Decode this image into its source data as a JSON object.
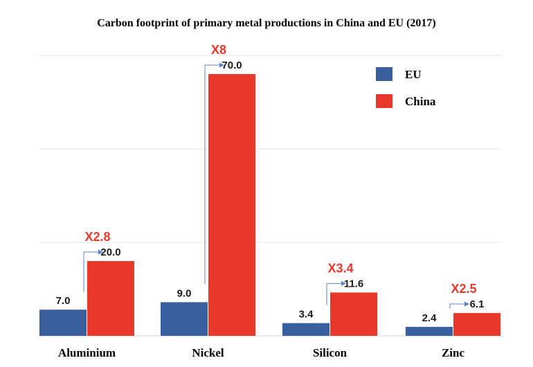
{
  "chart_data": {
    "type": "bar",
    "title": "Carbon footprint of primary metal productions in China and EU (2017)",
    "xlabel": "",
    "ylabel": "",
    "ylim": [
      0,
      80
    ],
    "grid": true,
    "legend_position": "top-right",
    "categories": [
      "Aluminium",
      "Nickel",
      "Silicon",
      "Zinc"
    ],
    "series": [
      {
        "name": "EU",
        "color": "#3a5f9e",
        "values": [
          7.0,
          9.0,
          3.4,
          2.4
        ],
        "labels": [
          "7.0",
          "9.0",
          "3.4",
          "2.4"
        ]
      },
      {
        "name": "China",
        "color": "#e8392c",
        "values": [
          20.0,
          70.0,
          11.6,
          6.1
        ],
        "labels": [
          "20.0",
          "70.0",
          "11.6",
          "6.1"
        ]
      }
    ],
    "ratio_annotations": [
      "X2.8",
      "X8",
      "X3.4",
      "X2.5"
    ],
    "arrow_color": "#5b84c8"
  }
}
